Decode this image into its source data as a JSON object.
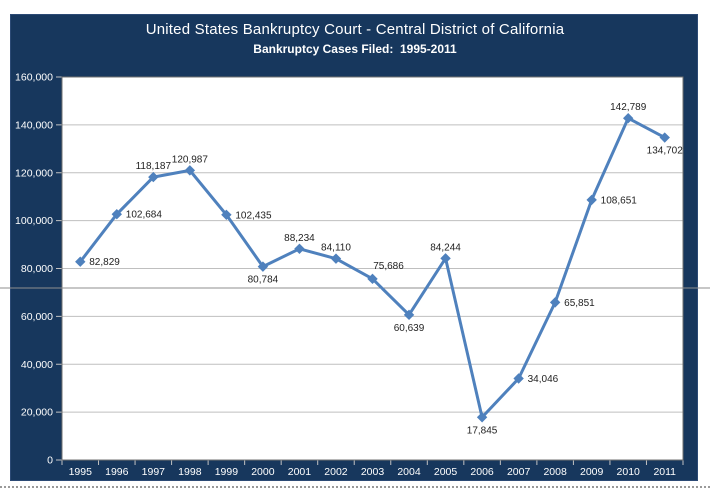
{
  "chart_data": {
    "type": "line",
    "title": "United States Bankruptcy Court - Central District of California",
    "subtitle": "Bankruptcy Cases Filed:  1995-2011",
    "categories": [
      "1995",
      "1996",
      "1997",
      "1998",
      "1999",
      "2000",
      "2001",
      "2002",
      "2003",
      "2004",
      "2005",
      "2006",
      "2007",
      "2008",
      "2009",
      "2010",
      "2011"
    ],
    "values": [
      82829,
      102684,
      118187,
      120987,
      102435,
      80784,
      88234,
      84110,
      75686,
      60639,
      84244,
      17845,
      34046,
      65851,
      108651,
      142789,
      134702
    ],
    "value_labels": [
      "82,829",
      "102,684",
      "118,187",
      "120,987",
      "102,435",
      "80,784",
      "88,234",
      "84,110",
      "75,686",
      "60,639",
      "84,244",
      "17,845",
      "34,046",
      "65,851",
      "108,651",
      "142,789",
      "134,702"
    ],
    "label_placements": [
      "right",
      "right",
      "above",
      "above",
      "right",
      "below",
      "above",
      "above",
      "above-right",
      "below",
      "above",
      "below",
      "right",
      "right",
      "right",
      "above",
      "below"
    ],
    "xlabel": "",
    "ylabel": "",
    "ylim": [
      0,
      160000
    ],
    "ytick_step": 20000,
    "ytick_labels": [
      "0",
      "20,000",
      "40,000",
      "60,000",
      "80,000",
      "100,000",
      "120,000",
      "140,000",
      "160,000"
    ],
    "grid": "horizontal-only",
    "legend": "none",
    "marker_style": "diamond",
    "colors": {
      "panel_background": "#17375d",
      "plot_background": "#ffffff",
      "line": "#4f81bd",
      "marker": "#4f81bd",
      "gridline": "#bfbfbf",
      "plot_border": "#707070",
      "tick": "#c2c2c2",
      "axis_text": "#ffffff",
      "title_text": "#ffffff",
      "data_label_text": "#1f1f1f",
      "seam_line": "#8f8f8f"
    }
  }
}
